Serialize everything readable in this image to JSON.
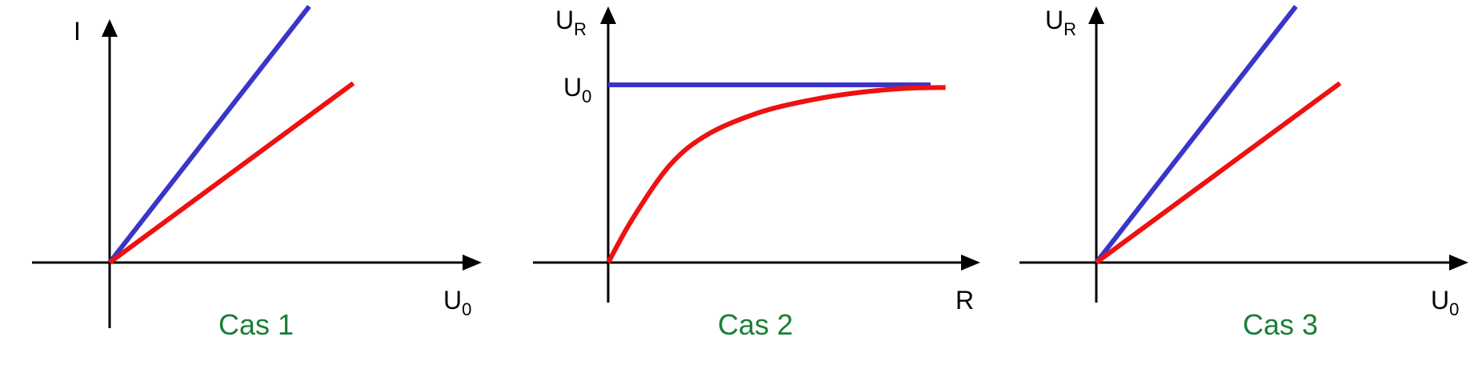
{
  "colors": {
    "blue": "#3a35c8",
    "red": "#ee1111",
    "caption": "#1a7f37",
    "axis": "#000000"
  },
  "chart_data": [
    {
      "type": "line",
      "caption": "Cas 1",
      "ylabel": {
        "main": "I",
        "sub": ""
      },
      "xlabel": {
        "main": "U",
        "sub": "0"
      },
      "xlim": [
        -0.29,
        1.4
      ],
      "ylim": [
        -0.27,
        1.0
      ],
      "series": [
        {
          "color": "blue",
          "shape": "line",
          "x": [
            0,
            0.86
          ],
          "y": [
            0,
            1.0
          ]
        },
        {
          "color": "red",
          "shape": "line",
          "x": [
            0,
            1.05
          ],
          "y": [
            0,
            0.7
          ]
        }
      ]
    },
    {
      "type": "line",
      "caption": "Cas 2",
      "ylabel": {
        "main": "U",
        "sub": "R"
      },
      "xlabel": {
        "main": "R",
        "sub": ""
      },
      "ytick": {
        "value": 1.0,
        "main": "U",
        "sub": "0"
      },
      "xlim": [
        -0.29,
        1.4
      ],
      "ylim": [
        -0.27,
        1.4
      ],
      "series": [
        {
          "color": "blue",
          "shape": "hline",
          "x": [
            0,
            1.3
          ],
          "y": [
            1.0,
            1.0
          ]
        },
        {
          "color": "red",
          "shape": "curve",
          "x": [
            0,
            0.1,
            0.25,
            0.4,
            0.6,
            0.8,
            1.0,
            1.2,
            1.36
          ],
          "y": [
            0,
            0.25,
            0.55,
            0.72,
            0.84,
            0.91,
            0.955,
            0.98,
            0.985
          ]
        }
      ]
    },
    {
      "type": "line",
      "caption": "Cas 3",
      "ylabel": {
        "main": "U",
        "sub": "R"
      },
      "xlabel": {
        "main": "U",
        "sub": "0"
      },
      "xlim": [
        -0.29,
        1.4
      ],
      "ylim": [
        -0.27,
        1.0
      ],
      "series": [
        {
          "color": "blue",
          "shape": "line",
          "x": [
            0,
            0.86
          ],
          "y": [
            0,
            1.0
          ]
        },
        {
          "color": "red",
          "shape": "line",
          "x": [
            0,
            1.05
          ],
          "y": [
            0,
            0.7
          ]
        }
      ]
    }
  ]
}
